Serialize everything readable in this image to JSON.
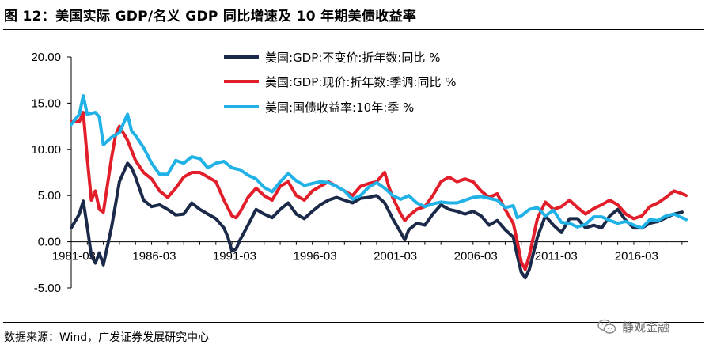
{
  "figure": {
    "title": "图 12：美国实际 GDP/名义 GDP 同比增速及 10 年期美债收益率",
    "source": "数据来源：Wind，广发证券发展研究中心",
    "watermark": "静观金融",
    "watermark_icon": "wechat-icon"
  },
  "chart_data": {
    "type": "line",
    "grid": false,
    "legend_position": "top-center",
    "ylim": [
      -5,
      20
    ],
    "y_ticks": [
      "20.00",
      "15.00",
      "10.00",
      "5.00",
      "0.00",
      "-5.00"
    ],
    "x_ticks": [
      "1981-03",
      "1986-03",
      "1991-03",
      "1996-03",
      "2001-03",
      "2006-03",
      "2011-03",
      "2016-03"
    ],
    "xlim": [
      1981.0,
      2019.4
    ],
    "series": [
      {
        "name": "美国:GDP:不变价:折年数:同比 %",
        "color": "#1c2a4a",
        "points": [
          [
            1981.0,
            1.5
          ],
          [
            1981.5,
            3.0
          ],
          [
            1981.75,
            4.4
          ],
          [
            1982.0,
            1.6
          ],
          [
            1982.25,
            -1.5
          ],
          [
            1982.5,
            -2.3
          ],
          [
            1982.75,
            -1.2
          ],
          [
            1983.0,
            -2.5
          ],
          [
            1983.5,
            1.5
          ],
          [
            1983.75,
            4.0
          ],
          [
            1984.0,
            6.5
          ],
          [
            1984.5,
            8.5
          ],
          [
            1984.75,
            8.0
          ],
          [
            1985.0,
            7.0
          ],
          [
            1985.5,
            4.5
          ],
          [
            1986.0,
            3.8
          ],
          [
            1986.5,
            4.0
          ],
          [
            1987.0,
            3.5
          ],
          [
            1987.5,
            2.9
          ],
          [
            1988.0,
            3.0
          ],
          [
            1988.5,
            4.2
          ],
          [
            1989.0,
            3.5
          ],
          [
            1989.5,
            3.0
          ],
          [
            1990.0,
            2.5
          ],
          [
            1990.5,
            1.5
          ],
          [
            1990.75,
            0.5
          ],
          [
            1991.0,
            -1.0
          ],
          [
            1991.25,
            -0.8
          ],
          [
            1991.5,
            0.2
          ],
          [
            1992.0,
            1.8
          ],
          [
            1992.5,
            3.5
          ],
          [
            1993.0,
            3.0
          ],
          [
            1993.5,
            2.6
          ],
          [
            1994.0,
            3.5
          ],
          [
            1994.5,
            4.2
          ],
          [
            1995.0,
            3.0
          ],
          [
            1995.5,
            2.5
          ],
          [
            1996.0,
            3.3
          ],
          [
            1996.5,
            4.0
          ],
          [
            1997.0,
            4.5
          ],
          [
            1997.5,
            4.8
          ],
          [
            1998.0,
            4.5
          ],
          [
            1998.5,
            4.2
          ],
          [
            1999.0,
            4.7
          ],
          [
            1999.5,
            4.8
          ],
          [
            2000.0,
            5.0
          ],
          [
            2000.5,
            4.2
          ],
          [
            2001.0,
            2.5
          ],
          [
            2001.5,
            1.0
          ],
          [
            2001.75,
            0.2
          ],
          [
            2002.0,
            1.3
          ],
          [
            2002.5,
            2.0
          ],
          [
            2003.0,
            1.8
          ],
          [
            2003.5,
            3.0
          ],
          [
            2004.0,
            4.0
          ],
          [
            2004.5,
            3.5
          ],
          [
            2005.0,
            3.3
          ],
          [
            2005.5,
            3.0
          ],
          [
            2006.0,
            3.3
          ],
          [
            2006.5,
            2.8
          ],
          [
            2007.0,
            1.8
          ],
          [
            2007.5,
            2.3
          ],
          [
            2008.0,
            1.3
          ],
          [
            2008.5,
            0.5
          ],
          [
            2008.75,
            -1.5
          ],
          [
            2009.0,
            -3.3
          ],
          [
            2009.25,
            -3.9
          ],
          [
            2009.5,
            -3.0
          ],
          [
            2010.0,
            0.5
          ],
          [
            2010.5,
            2.8
          ],
          [
            2011.0,
            1.8
          ],
          [
            2011.5,
            1.0
          ],
          [
            2012.0,
            2.5
          ],
          [
            2012.5,
            2.5
          ],
          [
            2013.0,
            1.5
          ],
          [
            2013.5,
            1.8
          ],
          [
            2014.0,
            1.5
          ],
          [
            2014.5,
            2.8
          ],
          [
            2015.0,
            3.5
          ],
          [
            2015.5,
            2.3
          ],
          [
            2016.0,
            1.5
          ],
          [
            2016.5,
            1.5
          ],
          [
            2017.0,
            2.0
          ],
          [
            2017.5,
            2.2
          ],
          [
            2018.0,
            2.6
          ],
          [
            2018.5,
            3.0
          ],
          [
            2019.0,
            3.2
          ]
        ]
      },
      {
        "name": "美国:GDP:现价:折年数:季调:同比 %",
        "color": "#e11e29",
        "points": [
          [
            1981.0,
            13.0
          ],
          [
            1981.5,
            13.0
          ],
          [
            1981.75,
            14.0
          ],
          [
            1982.0,
            9.0
          ],
          [
            1982.25,
            4.5
          ],
          [
            1982.5,
            5.5
          ],
          [
            1982.75,
            3.5
          ],
          [
            1983.0,
            3.2
          ],
          [
            1983.5,
            9.0
          ],
          [
            1983.75,
            11.5
          ],
          [
            1984.0,
            12.5
          ],
          [
            1984.5,
            11.0
          ],
          [
            1985.0,
            8.8
          ],
          [
            1985.5,
            7.5
          ],
          [
            1986.0,
            6.8
          ],
          [
            1986.5,
            5.5
          ],
          [
            1987.0,
            4.8
          ],
          [
            1987.5,
            5.8
          ],
          [
            1988.0,
            7.0
          ],
          [
            1988.5,
            7.5
          ],
          [
            1989.0,
            7.5
          ],
          [
            1989.5,
            7.0
          ],
          [
            1990.0,
            6.5
          ],
          [
            1990.5,
            4.5
          ],
          [
            1991.0,
            2.8
          ],
          [
            1991.25,
            2.6
          ],
          [
            1991.5,
            3.2
          ],
          [
            1992.0,
            4.8
          ],
          [
            1992.5,
            5.8
          ],
          [
            1993.0,
            5.0
          ],
          [
            1993.5,
            4.5
          ],
          [
            1994.0,
            6.0
          ],
          [
            1994.5,
            6.5
          ],
          [
            1995.0,
            5.0
          ],
          [
            1995.5,
            4.5
          ],
          [
            1996.0,
            5.5
          ],
          [
            1996.5,
            6.0
          ],
          [
            1997.0,
            6.5
          ],
          [
            1997.5,
            6.0
          ],
          [
            1998.0,
            5.5
          ],
          [
            1998.5,
            5.0
          ],
          [
            1999.0,
            6.0
          ],
          [
            1999.5,
            6.3
          ],
          [
            2000.0,
            6.5
          ],
          [
            2000.5,
            7.5
          ],
          [
            2000.75,
            6.0
          ],
          [
            2001.0,
            4.8
          ],
          [
            2001.5,
            3.0
          ],
          [
            2001.75,
            2.3
          ],
          [
            2002.0,
            2.8
          ],
          [
            2002.5,
            3.5
          ],
          [
            2003.0,
            3.8
          ],
          [
            2003.5,
            5.0
          ],
          [
            2004.0,
            6.5
          ],
          [
            2004.5,
            7.0
          ],
          [
            2005.0,
            6.5
          ],
          [
            2005.5,
            6.8
          ],
          [
            2006.0,
            6.5
          ],
          [
            2006.5,
            5.5
          ],
          [
            2007.0,
            4.8
          ],
          [
            2007.5,
            5.2
          ],
          [
            2008.0,
            3.5
          ],
          [
            2008.5,
            2.0
          ],
          [
            2008.75,
            0.0
          ],
          [
            2009.0,
            -2.2
          ],
          [
            2009.25,
            -3.0
          ],
          [
            2009.5,
            -1.5
          ],
          [
            2010.0,
            2.5
          ],
          [
            2010.5,
            4.3
          ],
          [
            2011.0,
            3.5
          ],
          [
            2011.5,
            3.8
          ],
          [
            2012.0,
            4.5
          ],
          [
            2012.5,
            3.7
          ],
          [
            2013.0,
            3.0
          ],
          [
            2013.5,
            3.6
          ],
          [
            2014.0,
            4.0
          ],
          [
            2014.5,
            4.5
          ],
          [
            2015.0,
            4.0
          ],
          [
            2015.5,
            3.0
          ],
          [
            2016.0,
            2.5
          ],
          [
            2016.5,
            2.8
          ],
          [
            2017.0,
            3.8
          ],
          [
            2017.5,
            4.2
          ],
          [
            2018.0,
            4.8
          ],
          [
            2018.5,
            5.5
          ],
          [
            2019.0,
            5.2
          ],
          [
            2019.25,
            5.0
          ]
        ]
      },
      {
        "name": "美国:国债收益率:10年:季 %",
        "color": "#20b2e6",
        "points": [
          [
            1981.0,
            12.7
          ],
          [
            1981.5,
            13.8
          ],
          [
            1981.75,
            15.8
          ],
          [
            1982.0,
            13.8
          ],
          [
            1982.5,
            14.0
          ],
          [
            1982.75,
            13.5
          ],
          [
            1983.0,
            10.5
          ],
          [
            1983.5,
            11.3
          ],
          [
            1984.0,
            11.8
          ],
          [
            1984.5,
            13.8
          ],
          [
            1984.75,
            12.0
          ],
          [
            1985.0,
            11.5
          ],
          [
            1985.5,
            10.2
          ],
          [
            1986.0,
            8.5
          ],
          [
            1986.5,
            7.3
          ],
          [
            1987.0,
            7.3
          ],
          [
            1987.5,
            8.8
          ],
          [
            1988.0,
            8.5
          ],
          [
            1988.5,
            9.2
          ],
          [
            1989.0,
            9.0
          ],
          [
            1989.5,
            8.0
          ],
          [
            1990.0,
            8.5
          ],
          [
            1990.5,
            8.7
          ],
          [
            1991.0,
            8.0
          ],
          [
            1991.5,
            7.8
          ],
          [
            1992.0,
            7.2
          ],
          [
            1992.5,
            6.8
          ],
          [
            1993.0,
            5.9
          ],
          [
            1993.5,
            5.4
          ],
          [
            1994.0,
            6.5
          ],
          [
            1994.5,
            7.4
          ],
          [
            1995.0,
            6.6
          ],
          [
            1995.5,
            6.1
          ],
          [
            1996.0,
            6.3
          ],
          [
            1996.5,
            6.5
          ],
          [
            1997.0,
            6.4
          ],
          [
            1997.5,
            6.0
          ],
          [
            1998.0,
            5.5
          ],
          [
            1998.5,
            4.6
          ],
          [
            1999.0,
            5.0
          ],
          [
            1999.5,
            5.9
          ],
          [
            2000.0,
            6.4
          ],
          [
            2000.5,
            5.8
          ],
          [
            2001.0,
            5.0
          ],
          [
            2001.5,
            4.6
          ],
          [
            2002.0,
            5.0
          ],
          [
            2002.5,
            4.2
          ],
          [
            2003.0,
            3.8
          ],
          [
            2003.5,
            4.1
          ],
          [
            2004.0,
            4.3
          ],
          [
            2004.5,
            4.2
          ],
          [
            2005.0,
            4.2
          ],
          [
            2005.5,
            4.5
          ],
          [
            2006.0,
            4.8
          ],
          [
            2006.5,
            4.9
          ],
          [
            2007.0,
            4.7
          ],
          [
            2007.5,
            4.5
          ],
          [
            2008.0,
            3.7
          ],
          [
            2008.5,
            3.9
          ],
          [
            2008.75,
            2.6
          ],
          [
            2009.0,
            2.8
          ],
          [
            2009.5,
            3.5
          ],
          [
            2010.0,
            3.7
          ],
          [
            2010.5,
            2.8
          ],
          [
            2011.0,
            3.4
          ],
          [
            2011.5,
            2.1
          ],
          [
            2012.0,
            2.0
          ],
          [
            2012.5,
            1.6
          ],
          [
            2013.0,
            1.9
          ],
          [
            2013.5,
            2.7
          ],
          [
            2014.0,
            2.7
          ],
          [
            2014.5,
            2.3
          ],
          [
            2015.0,
            2.0
          ],
          [
            2015.5,
            2.2
          ],
          [
            2016.0,
            1.8
          ],
          [
            2016.5,
            1.5
          ],
          [
            2017.0,
            2.4
          ],
          [
            2017.5,
            2.3
          ],
          [
            2018.0,
            2.8
          ],
          [
            2018.5,
            3.0
          ],
          [
            2019.0,
            2.6
          ],
          [
            2019.25,
            2.4
          ]
        ]
      }
    ]
  }
}
